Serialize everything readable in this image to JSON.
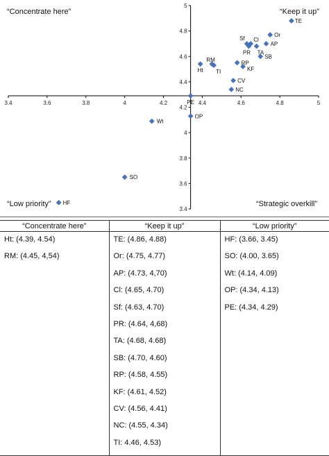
{
  "chart_data": {
    "type": "scatter",
    "title": "",
    "xlabel": "",
    "ylabel": "",
    "xlim": [
      3.4,
      5
    ],
    "ylim": [
      3.4,
      5
    ],
    "x_ticks": [
      "3.4",
      "3.6",
      "3.8",
      "4",
      "4.2",
      "4.4",
      "4.6",
      "4.8",
      "5"
    ],
    "y_ticks": [
      "3.4",
      "3.6",
      "3.8",
      "4",
      "4.2",
      "4.4",
      "4.6",
      "4.8",
      "5"
    ],
    "axis_cross": {
      "x": 4.34,
      "y": 4.29
    },
    "marker_color": "#4472c4",
    "grid": false,
    "quadrant_labels": {
      "top_left": "“Concentrate here”",
      "top_right": "“Keep it up”",
      "bottom_left": "“Low priority”",
      "bottom_right": "“Strategic overkill”"
    },
    "points": [
      {
        "label": "TE",
        "x": 4.86,
        "y": 4.88
      },
      {
        "label": "Or",
        "x": 4.75,
        "y": 4.77
      },
      {
        "label": "AP",
        "x": 4.73,
        "y": 4.7
      },
      {
        "label": "Cl",
        "x": 4.65,
        "y": 4.7
      },
      {
        "label": "Sf",
        "x": 4.63,
        "y": 4.7
      },
      {
        "label": "PR",
        "x": 4.64,
        "y": 4.68
      },
      {
        "label": "TA",
        "x": 4.68,
        "y": 4.68
      },
      {
        "label": "SB",
        "x": 4.7,
        "y": 4.6
      },
      {
        "label": "RP",
        "x": 4.58,
        "y": 4.55
      },
      {
        "label": "KF",
        "x": 4.61,
        "y": 4.52
      },
      {
        "label": "CV",
        "x": 4.56,
        "y": 4.41
      },
      {
        "label": "NC",
        "x": 4.55,
        "y": 4.34
      },
      {
        "label": "TI",
        "x": 4.46,
        "y": 4.53
      },
      {
        "label": "RM",
        "x": 4.45,
        "y": 4.54
      },
      {
        "label": "Ht",
        "x": 4.39,
        "y": 4.54
      },
      {
        "label": "PE",
        "x": 4.34,
        "y": 4.29
      },
      {
        "label": "OP",
        "x": 4.34,
        "y": 4.13
      },
      {
        "label": "Wt",
        "x": 4.14,
        "y": 4.09
      },
      {
        "label": "SO",
        "x": 4.0,
        "y": 3.65
      },
      {
        "label": "HF",
        "x": 3.66,
        "y": 3.45
      }
    ]
  },
  "table": {
    "headers": [
      "“Concentrate here”",
      "“Keep it up”",
      "“Low priority”"
    ],
    "columns": [
      [
        "Ht: (4.39, 4.54)",
        "RM: (4.45, 4,54)"
      ],
      [
        "TE: (4.86, 4.88)",
        "Or: (4.75, 4.77)",
        "AP: (4.73, 4,70)",
        "Cl: (4.65, 4.70)",
        "Sf: (4.63, 4.70)",
        "PR: (4.64, 4,68)",
        "TA: (4.68, 4.68)",
        "SB: (4.70, 4.60)",
        "RP: (4.58, 4.55)",
        "KF: (4.61, 4.52)",
        "CV: (4.56, 4.41)",
        "NC: (4.55, 4.34)",
        "TI: 4.46, 4.53)"
      ],
      [
        "HF: (3.66, 3.45)",
        "SO: (4.00, 3.65)",
        "Wt: (4.14, 4.09)",
        "OP: (4.34, 4.13)",
        "PE: (4.34, 4.29)"
      ]
    ]
  }
}
